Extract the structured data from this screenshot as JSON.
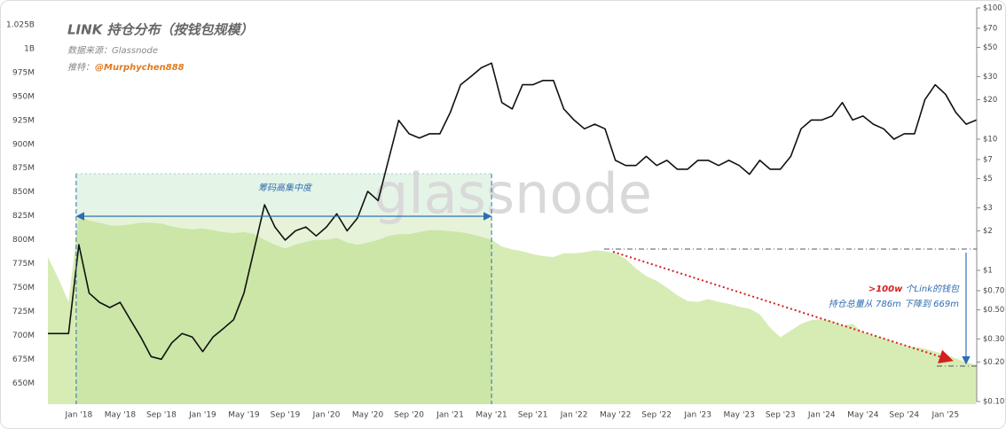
{
  "chart_data": {
    "type": "combo",
    "title": "LINK 持仓分布（按钱包规模）",
    "source": "数据来源：Glassnode",
    "twitter_label": "推特：",
    "twitter_handle": "@Murphychen888",
    "watermark": "glassnode",
    "annotations": {
      "concentration": "筹码高集中度",
      "threshold": ">100w",
      "wallets": " 个Link的钱包",
      "change": "持仓总量从 786m 下降到 669m"
    },
    "categories": [
      null,
      null,
      null,
      "Jan '18",
      null,
      null,
      null,
      "May '18",
      null,
      null,
      null,
      "Sep '18",
      null,
      null,
      null,
      "Jan '19",
      null,
      null,
      null,
      "May '19",
      null,
      null,
      null,
      "Sep '19",
      null,
      null,
      null,
      "Jan '20",
      null,
      null,
      null,
      "May '20",
      null,
      null,
      null,
      "Sep '20",
      null,
      null,
      null,
      "Jan '21",
      null,
      null,
      null,
      "May '21",
      null,
      null,
      null,
      "Sep '21",
      null,
      null,
      null,
      "Jan '22",
      null,
      null,
      null,
      "May '22",
      null,
      null,
      null,
      "Sep '22",
      null,
      null,
      null,
      "Jan '23",
      null,
      null,
      null,
      "May '23",
      null,
      null,
      null,
      "Sep '23",
      null,
      null,
      null,
      "Jan '24",
      null,
      null,
      null,
      "May '24",
      null,
      null,
      null,
      "Sep '24",
      null,
      null,
      null,
      "Jan '25",
      null,
      null,
      null
    ],
    "series": [
      {
        "type": "area",
        "color": "#d6ecb4",
        "values": [
          782,
          760,
          735,
          826,
          820,
          818,
          815,
          815,
          816,
          818,
          818,
          817,
          814,
          812,
          811,
          812,
          810,
          808,
          807,
          808,
          806,
          800,
          795,
          791,
          795,
          798,
          800,
          800,
          802,
          797,
          795,
          797,
          800,
          804,
          806,
          806,
          808,
          810,
          810,
          809,
          808,
          806,
          803,
          800,
          793,
          790,
          788,
          785,
          783,
          782,
          786,
          786,
          787,
          789,
          788,
          786,
          780,
          770,
          762,
          757,
          750,
          742,
          736,
          735,
          738,
          735,
          733,
          730,
          728,
          722,
          708,
          698,
          705,
          712,
          716,
          717,
          715,
          710,
          712,
          703,
          700,
          697,
          693,
          689,
          688,
          686,
          683,
          680,
          676,
          672,
          669
        ]
      },
      {
        "type": "line",
        "axis": "y2",
        "color": "#111111",
        "values": [
          0.33,
          0.33,
          0.33,
          1.57,
          0.67,
          0.57,
          0.52,
          0.57,
          0.42,
          0.31,
          0.22,
          0.21,
          0.28,
          0.33,
          0.31,
          0.24,
          0.31,
          0.36,
          0.42,
          0.67,
          1.45,
          3.16,
          2.14,
          1.7,
          2.0,
          2.14,
          1.83,
          2.14,
          2.7,
          2.0,
          2.5,
          4.0,
          3.4,
          6.9,
          13.9,
          11,
          10.2,
          11,
          11,
          16,
          26,
          30,
          35,
          38,
          19,
          17,
          26,
          26,
          28,
          28,
          17,
          14,
          12,
          13,
          12,
          6.9,
          6.3,
          6.3,
          7.4,
          6.3,
          6.9,
          5.9,
          5.9,
          6.9,
          6.9,
          6.3,
          6.9,
          6.3,
          5.4,
          6.9,
          5.9,
          5.9,
          7.4,
          12,
          14,
          14,
          15,
          19,
          14,
          15,
          13,
          12,
          10,
          11,
          11,
          20,
          26,
          22,
          16,
          13,
          14
        ]
      }
    ],
    "ylim": [
      628,
      1025
    ],
    "yticks": [
      {
        "value": 650,
        "label": "650M"
      },
      {
        "value": 675,
        "label": "675M"
      },
      {
        "value": 700,
        "label": "700M"
      },
      {
        "value": 725,
        "label": "725M"
      },
      {
        "value": 750,
        "label": "750M"
      },
      {
        "value": 775,
        "label": "775M"
      },
      {
        "value": 800,
        "label": "800M"
      },
      {
        "value": 825,
        "label": "825M"
      },
      {
        "value": 850,
        "label": "850M"
      },
      {
        "value": 875,
        "label": "875M"
      },
      {
        "value": 900,
        "label": "900M"
      },
      {
        "value": 925,
        "label": "925M"
      },
      {
        "value": 950,
        "label": "950M"
      },
      {
        "value": 975,
        "label": "975M"
      },
      {
        "value": 1000,
        "label": "1B"
      },
      {
        "value": 1025,
        "label": "1.025B"
      }
    ],
    "y2lim": [
      0.1,
      100
    ],
    "y2scale": "log",
    "y2ticks": [
      {
        "value": 0.1,
        "label": "$0.10"
      },
      {
        "value": 0.2,
        "label": "$0.20"
      },
      {
        "value": 0.3,
        "label": "$0.30"
      },
      {
        "value": 0.5,
        "label": "$0.50"
      },
      {
        "value": 0.7,
        "label": "$0.70"
      },
      {
        "value": 1,
        "label": "$1"
      },
      {
        "value": 2,
        "label": "$2"
      },
      {
        "value": 3,
        "label": "$3"
      },
      {
        "value": 5,
        "label": "$5"
      },
      {
        "value": 7,
        "label": "$7"
      },
      {
        "value": 10,
        "label": "$10"
      },
      {
        "value": 20,
        "label": "$20"
      },
      {
        "value": 30,
        "label": "$30"
      },
      {
        "value": 50,
        "label": "$50"
      },
      {
        "value": 70,
        "label": "$70"
      },
      {
        "value": 100,
        "label": "$100"
      }
    ]
  }
}
